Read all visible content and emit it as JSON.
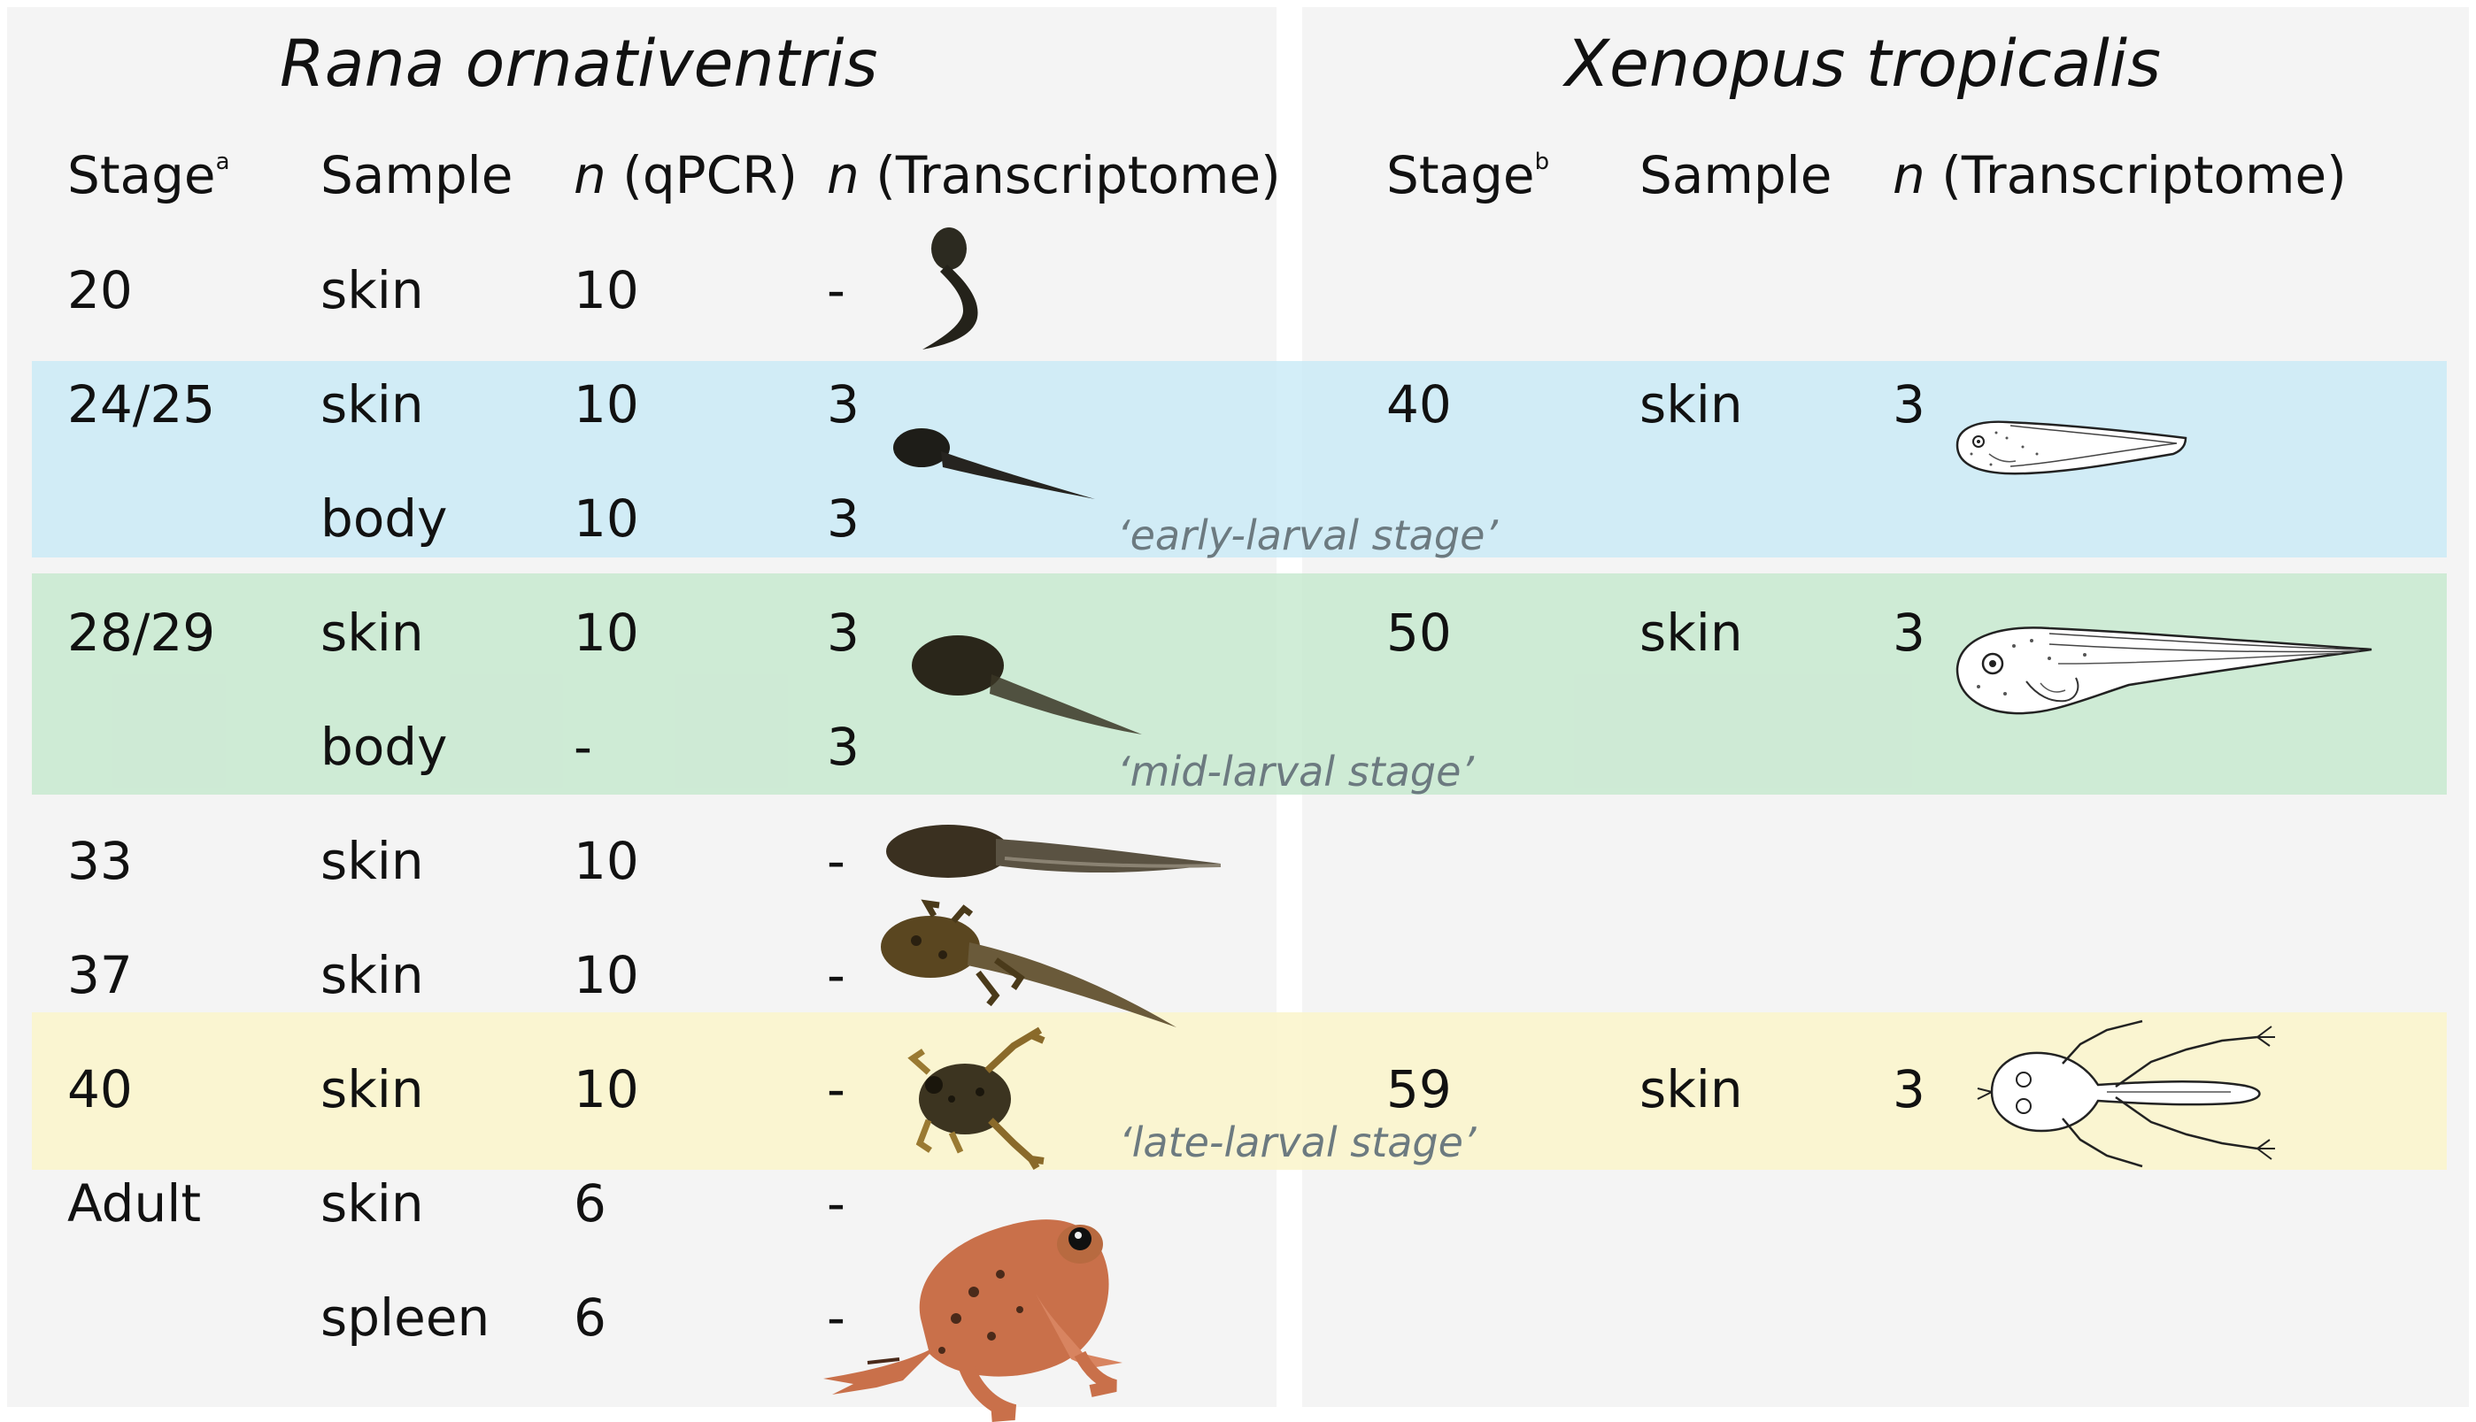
{
  "left": {
    "title": "Rana ornativentris",
    "headers": {
      "stage": "Stage",
      "stage_sup": "a",
      "sample": "Sample",
      "n_qpcr_n": "n",
      "n_qpcr_rest": " (qPCR)",
      "n_tx_n": "n",
      "n_tx_rest": " (Transcriptome)"
    },
    "rows": [
      {
        "stage": "20",
        "sample": "skin",
        "qpcr": "10",
        "tx": "-"
      },
      {
        "stage": "24/25",
        "sample": "skin",
        "qpcr": "10",
        "tx": "3"
      },
      {
        "stage": "",
        "sample": "body",
        "qpcr": "10",
        "tx": "3"
      },
      {
        "stage": "28/29",
        "sample": "skin",
        "qpcr": "10",
        "tx": "3"
      },
      {
        "stage": "",
        "sample": "body",
        "qpcr": "-",
        "tx": "3"
      },
      {
        "stage": "33",
        "sample": "skin",
        "qpcr": "10",
        "tx": "-"
      },
      {
        "stage": "37",
        "sample": "skin",
        "qpcr": "10",
        "tx": "-"
      },
      {
        "stage": "40",
        "sample": "skin",
        "qpcr": "10",
        "tx": "-"
      },
      {
        "stage": "Adult",
        "sample": "skin",
        "qpcr": "6",
        "tx": "-"
      },
      {
        "stage": "",
        "sample": "spleen",
        "qpcr": "6",
        "tx": "-"
      }
    ]
  },
  "right": {
    "title": "Xenopus tropicalis",
    "headers": {
      "stage": "Stage",
      "stage_sup": "b",
      "sample": "Sample",
      "n_tx_n": "n",
      "n_tx_rest": " (Transcriptome)"
    },
    "rows": [
      {
        "stage": "40",
        "sample": "skin",
        "tx": "3"
      },
      {
        "stage": "50",
        "sample": "skin",
        "tx": "3"
      },
      {
        "stage": "59",
        "sample": "skin",
        "tx": "3"
      }
    ]
  },
  "bands": {
    "early": "‘early-larval stage’",
    "mid": "‘mid-larval stage’",
    "late": "‘late-larval stage’"
  },
  "colors": {
    "early": "#d8eef7",
    "mid": "#d2ead8",
    "late": "#faf5d2",
    "panel": "#f4f4f4"
  },
  "images": {
    "rana_st20": "tadpole-photo-icon",
    "rana_st25": "tadpole-photo-icon",
    "rana_st29": "tadpole-photo-icon",
    "rana_st33": "tadpole-photo-icon",
    "rana_st37": "tadpole-limbs-photo-icon",
    "rana_st40": "froglet-photo-icon",
    "rana_adult": "adult-frog-photo-icon",
    "xeno_st40": "tadpole-drawing-icon",
    "xeno_st50": "tadpole-drawing-icon",
    "xeno_st59": "froglet-drawing-icon"
  }
}
